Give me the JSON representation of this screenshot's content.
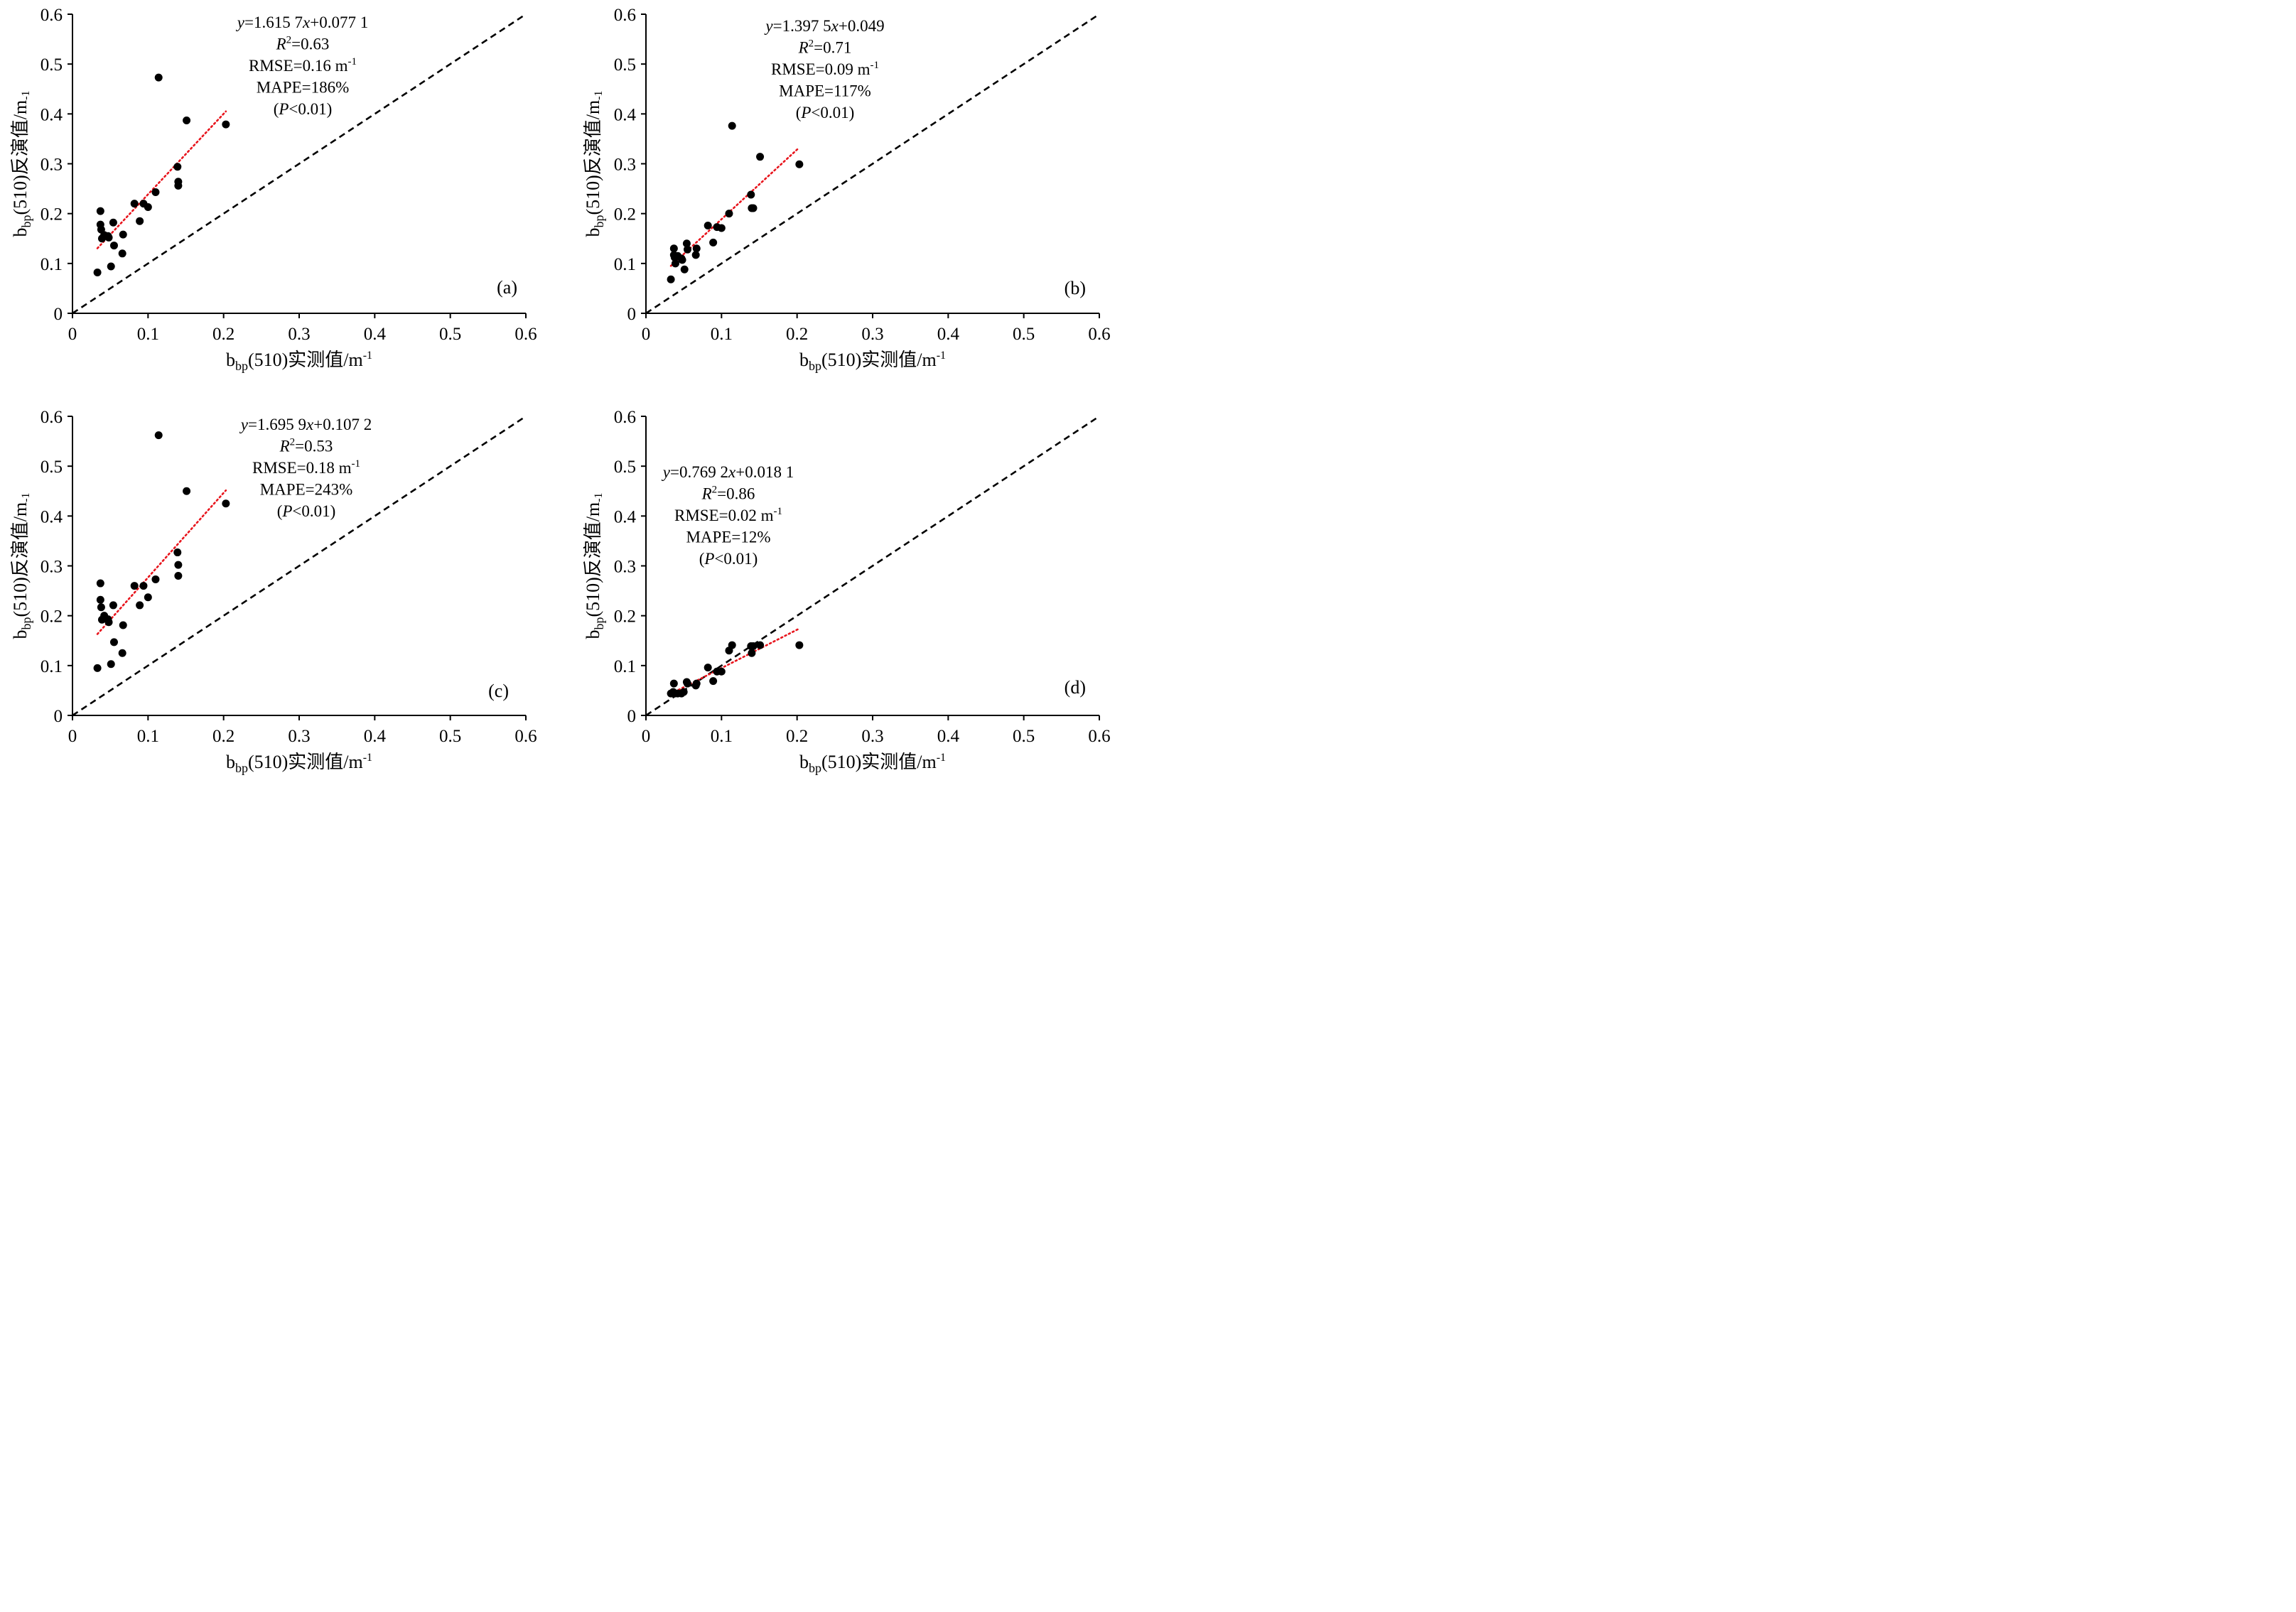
{
  "chart_data": [
    {
      "type": "scatter",
      "panel_label": "(a)",
      "xlabel": {
        "base": "b",
        "sub": "bp",
        "text": "(510)实测值/m",
        "sup": "-1"
      },
      "ylabel": {
        "base": "b",
        "sub": "bp",
        "text": "(510)反演值/m",
        "sup": "-1"
      },
      "xlim": [
        0,
        0.6
      ],
      "ylim": [
        0,
        0.6
      ],
      "xticks": [
        "0",
        "0.1",
        "0.2",
        "0.3",
        "0.4",
        "0.5",
        "0.6"
      ],
      "yticks": [
        "0",
        "0.1",
        "0.2",
        "0.3",
        "0.4",
        "0.5",
        "0.6"
      ],
      "annotation": {
        "equation": {
          "y": "y",
          "eq": "=1.615 7",
          "x": "x",
          "rest": "+0.077 1"
        },
        "r2": {
          "r": "R",
          "sup": "2",
          "rest": "=0.63"
        },
        "rmse": {
          "text": "RMSE=0.16 m",
          "sup": "-1"
        },
        "mape": "MAPE=186%",
        "p": {
          "open": "(",
          "p": "P",
          "rest": "<0.01)"
        }
      },
      "fit_line": {
        "slope": 1.6157,
        "intercept": 0.0771,
        "x_range": [
          0.033,
          0.203
        ],
        "color": "#e8141c"
      },
      "reference_line": {
        "slope": 1,
        "intercept": 0,
        "style": "dashed",
        "color": "#000000"
      },
      "points": [
        [
          0.033,
          0.082
        ],
        [
          0.037,
          0.205
        ],
        [
          0.037,
          0.178
        ],
        [
          0.038,
          0.168
        ],
        [
          0.039,
          0.15
        ],
        [
          0.042,
          0.157
        ],
        [
          0.047,
          0.155
        ],
        [
          0.048,
          0.152
        ],
        [
          0.051,
          0.094
        ],
        [
          0.054,
          0.182
        ],
        [
          0.055,
          0.136
        ],
        [
          0.066,
          0.12
        ],
        [
          0.067,
          0.158
        ],
        [
          0.082,
          0.22
        ],
        [
          0.089,
          0.185
        ],
        [
          0.094,
          0.22
        ],
        [
          0.1,
          0.213
        ],
        [
          0.11,
          0.243
        ],
        [
          0.114,
          0.473
        ],
        [
          0.139,
          0.294
        ],
        [
          0.14,
          0.264
        ],
        [
          0.14,
          0.256
        ],
        [
          0.151,
          0.387
        ],
        [
          0.203,
          0.379
        ]
      ]
    },
    {
      "type": "scatter",
      "panel_label": "(b)",
      "xlabel": {
        "base": "b",
        "sub": "bp",
        "text": "(510)实测值/m",
        "sup": "-1"
      },
      "ylabel": {
        "base": "b",
        "sub": "bp",
        "text": "(510)反演值/m",
        "sup": "-1"
      },
      "xlim": [
        0,
        0.6
      ],
      "ylim": [
        0,
        0.6
      ],
      "xticks": [
        "0",
        "0.1",
        "0.2",
        "0.3",
        "0.4",
        "0.5",
        "0.6"
      ],
      "yticks": [
        "0",
        "0.1",
        "0.2",
        "0.3",
        "0.4",
        "0.5",
        "0.6"
      ],
      "annotation": {
        "equation": {
          "y": "y",
          "eq": "=1.397 5",
          "x": "x",
          "rest": "+0.049"
        },
        "r2": {
          "r": "R",
          "sup": "2",
          "rest": "=0.71"
        },
        "rmse": {
          "text": "RMSE=0.09 m",
          "sup": "-1"
        },
        "mape": "MAPE=117%",
        "p": {
          "open": "(",
          "p": "P",
          "rest": "<0.01)"
        }
      },
      "fit_line": {
        "slope": 1.3975,
        "intercept": 0.049,
        "x_range": [
          0.033,
          0.203
        ],
        "color": "#e8141c"
      },
      "reference_line": {
        "slope": 1,
        "intercept": 0,
        "style": "dashed",
        "color": "#000000"
      },
      "points": [
        [
          0.033,
          0.068
        ],
        [
          0.037,
          0.13
        ],
        [
          0.037,
          0.117
        ],
        [
          0.038,
          0.112
        ],
        [
          0.039,
          0.1
        ],
        [
          0.042,
          0.115
        ],
        [
          0.047,
          0.11
        ],
        [
          0.048,
          0.107
        ],
        [
          0.051,
          0.088
        ],
        [
          0.054,
          0.14
        ],
        [
          0.055,
          0.128
        ],
        [
          0.066,
          0.117
        ],
        [
          0.067,
          0.13
        ],
        [
          0.082,
          0.176
        ],
        [
          0.089,
          0.142
        ],
        [
          0.094,
          0.173
        ],
        [
          0.1,
          0.171
        ],
        [
          0.11,
          0.2
        ],
        [
          0.114,
          0.376
        ],
        [
          0.139,
          0.238
        ],
        [
          0.14,
          0.211
        ],
        [
          0.142,
          0.211
        ],
        [
          0.151,
          0.314
        ],
        [
          0.203,
          0.299
        ]
      ]
    },
    {
      "type": "scatter",
      "panel_label": "(c)",
      "xlabel": {
        "base": "b",
        "sub": "bp",
        "text": "(510)实测值/m",
        "sup": "-1"
      },
      "ylabel": {
        "base": "b",
        "sub": "bp",
        "text": "(510)反演值/m",
        "sup": "-1"
      },
      "xlim": [
        0,
        0.6
      ],
      "ylim": [
        0,
        0.6
      ],
      "xticks": [
        "0",
        "0.1",
        "0.2",
        "0.3",
        "0.4",
        "0.5",
        "0.6"
      ],
      "yticks": [
        "0",
        "0.1",
        "0.2",
        "0.3",
        "0.4",
        "0.5",
        "0.6"
      ],
      "annotation": {
        "equation": {
          "y": "y",
          "eq": "=1.695 9",
          "x": "x",
          "rest": "+0.107 2"
        },
        "r2": {
          "r": "R",
          "sup": "2",
          "rest": "=0.53"
        },
        "rmse": {
          "text": "RMSE=0.18 m",
          "sup": "-1"
        },
        "mape": "MAPE=243%",
        "p": {
          "open": "(",
          "p": "P",
          "rest": "<0.01)"
        }
      },
      "fit_line": {
        "slope": 1.6959,
        "intercept": 0.1072,
        "x_range": [
          0.033,
          0.203
        ],
        "color": "#e8141c"
      },
      "reference_line": {
        "slope": 1,
        "intercept": 0,
        "style": "dashed",
        "color": "#000000"
      },
      "points": [
        [
          0.033,
          0.095
        ],
        [
          0.037,
          0.265
        ],
        [
          0.037,
          0.232
        ],
        [
          0.038,
          0.217
        ],
        [
          0.039,
          0.192
        ],
        [
          0.042,
          0.2
        ],
        [
          0.047,
          0.193
        ],
        [
          0.048,
          0.187
        ],
        [
          0.051,
          0.103
        ],
        [
          0.054,
          0.221
        ],
        [
          0.055,
          0.147
        ],
        [
          0.066,
          0.125
        ],
        [
          0.067,
          0.181
        ],
        [
          0.082,
          0.26
        ],
        [
          0.089,
          0.221
        ],
        [
          0.094,
          0.26
        ],
        [
          0.1,
          0.237
        ],
        [
          0.11,
          0.273
        ],
        [
          0.114,
          0.562
        ],
        [
          0.139,
          0.327
        ],
        [
          0.14,
          0.302
        ],
        [
          0.14,
          0.28
        ],
        [
          0.151,
          0.45
        ],
        [
          0.203,
          0.425
        ]
      ]
    },
    {
      "type": "scatter",
      "panel_label": "(d)",
      "xlabel": {
        "base": "b",
        "sub": "bp",
        "text": "(510)实测值/m",
        "sup": "-1"
      },
      "ylabel": {
        "base": "b",
        "sub": "bp",
        "text": "(510)反演值/m",
        "sup": "-1"
      },
      "xlim": [
        0,
        0.6
      ],
      "ylim": [
        0,
        0.6
      ],
      "xticks": [
        "0",
        "0.1",
        "0.2",
        "0.3",
        "0.4",
        "0.5",
        "0.6"
      ],
      "yticks": [
        "0",
        "0.1",
        "0.2",
        "0.3",
        "0.4",
        "0.5",
        "0.6"
      ],
      "annotation": {
        "equation": {
          "y": "y",
          "eq": "=0.769 2",
          "x": "x",
          "rest": "+0.018 1"
        },
        "r2": {
          "r": "R",
          "sup": "2",
          "rest": "=0.86"
        },
        "rmse": {
          "text": "RMSE=0.02 m",
          "sup": "-1"
        },
        "mape": "MAPE=12%",
        "p": {
          "open": "(",
          "p": "P",
          "rest": "<0.01)"
        }
      },
      "fit_line": {
        "slope": 0.7692,
        "intercept": 0.0181,
        "x_range": [
          0.033,
          0.203
        ],
        "color": "#e8141c"
      },
      "reference_line": {
        "slope": 1,
        "intercept": 0,
        "style": "dashed",
        "color": "#000000"
      },
      "points": [
        [
          0.033,
          0.044
        ],
        [
          0.036,
          0.047
        ],
        [
          0.037,
          0.064
        ],
        [
          0.038,
          0.044
        ],
        [
          0.042,
          0.044
        ],
        [
          0.047,
          0.044
        ],
        [
          0.05,
          0.047
        ],
        [
          0.054,
          0.067
        ],
        [
          0.055,
          0.064
        ],
        [
          0.066,
          0.06
        ],
        [
          0.067,
          0.064
        ],
        [
          0.082,
          0.096
        ],
        [
          0.089,
          0.069
        ],
        [
          0.094,
          0.088
        ],
        [
          0.1,
          0.088
        ],
        [
          0.11,
          0.13
        ],
        [
          0.114,
          0.141
        ],
        [
          0.139,
          0.139
        ],
        [
          0.14,
          0.125
        ],
        [
          0.142,
          0.139
        ],
        [
          0.151,
          0.141
        ],
        [
          0.203,
          0.141
        ]
      ]
    }
  ]
}
